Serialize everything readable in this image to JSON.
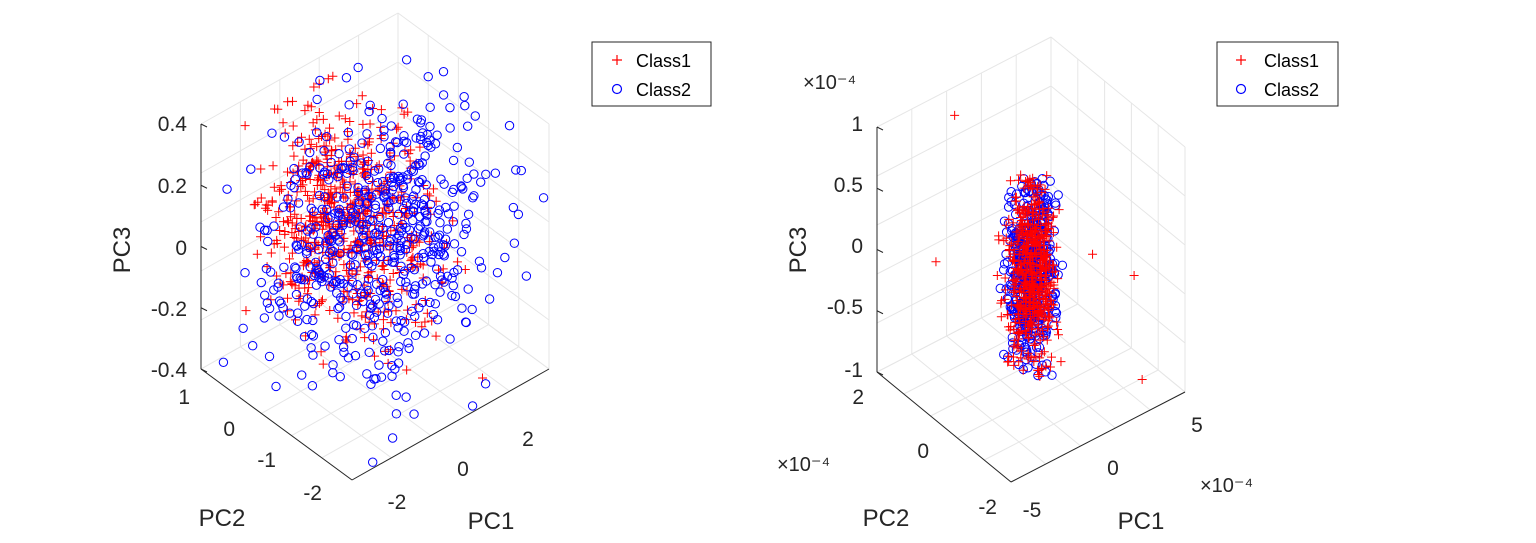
{
  "chart_data": [
    {
      "type": "scatter3d",
      "xlabel": "PC1",
      "ylabel": "PC2",
      "zlabel": "PC3",
      "xlim": [
        -3,
        3
      ],
      "ylim": [
        -2.3,
        1.2
      ],
      "zlim": [
        -0.4,
        0.4
      ],
      "xticks": [
        "-2",
        "0",
        "2"
      ],
      "yticks": [
        "1",
        "0",
        "-1",
        "-2"
      ],
      "zticks": [
        "0.4",
        "0.2",
        "0",
        "-0.2",
        "-0.4"
      ],
      "grid": true,
      "legend_position": "top-right",
      "series": [
        {
          "name": "Class1",
          "marker": "plus",
          "color": "#ff0000"
        },
        {
          "name": "Class2",
          "marker": "circle",
          "color": "#0000ff"
        }
      ],
      "clusters": [
        {
          "series": 0,
          "count": 650,
          "x": [
            -2.6,
            1.2
          ],
          "y": [
            -2.1,
            1.0
          ],
          "z": [
            -0.3,
            0.35
          ],
          "center": [
            -0.4,
            -0.2,
            0.08
          ]
        },
        {
          "series": 1,
          "count": 560,
          "x": [
            -2.6,
            3.0
          ],
          "y": [
            -2.3,
            1.0
          ],
          "z": [
            -0.38,
            0.36
          ],
          "center": [
            0.2,
            -0.5,
            0.0
          ]
        }
      ],
      "outliers": [
        {
          "series": 0,
          "x": 2.3,
          "y": -0.6,
          "z": -0.05
        },
        {
          "series": 0,
          "x": 1.5,
          "y": -1.9,
          "z": -0.38
        },
        {
          "series": 1,
          "x": 2.9,
          "y": -1.0,
          "z": -0.3
        },
        {
          "series": 1,
          "x": 1.2,
          "y": -2.2,
          "z": -0.35
        }
      ]
    },
    {
      "type": "scatter3d",
      "xlabel": "PC1",
      "ylabel": "PC2",
      "zlabel": "PC3",
      "x_exponent": "×10⁻⁴",
      "y_exponent": "×10⁻⁴",
      "z_exponent": "×10⁻⁴",
      "xlim": [
        -5,
        5
      ],
      "ylim": [
        -2,
        2
      ],
      "zlim": [
        -1,
        1
      ],
      "xticks": [
        "5",
        "0",
        "-5"
      ],
      "yticks": [
        "2",
        "0",
        "-2"
      ],
      "zticks": [
        "1",
        "0.5",
        "0",
        "-0.5",
        "-1"
      ],
      "grid": true,
      "legend_position": "top-right",
      "series": [
        {
          "name": "Class1",
          "marker": "plus",
          "color": "#ff0000"
        },
        {
          "name": "Class2",
          "marker": "circle",
          "color": "#0000ff"
        }
      ],
      "clusters": [
        {
          "series": 1,
          "count": 520,
          "x": [
            -1.0,
            1.0
          ],
          "y": [
            -0.5,
            0.5
          ],
          "z": [
            -0.85,
            0.6
          ],
          "center": [
            0,
            0,
            -0.1
          ]
        },
        {
          "series": 0,
          "count": 520,
          "x": [
            -1.0,
            1.0
          ],
          "y": [
            -0.5,
            0.5
          ],
          "z": [
            -0.85,
            0.6
          ],
          "center": [
            0,
            0,
            -0.1
          ]
        }
      ],
      "outliers": [
        {
          "series": 0,
          "x": -4.5,
          "y": 0.5,
          "z": 0.2
        },
        {
          "series": 0,
          "x": -1.5,
          "y": 1.5,
          "z": 0.95
        },
        {
          "series": 0,
          "x": 4.0,
          "y": -1.0,
          "z": -0.2
        },
        {
          "series": 0,
          "x": 4.5,
          "y": 0.5,
          "z": -0.4
        },
        {
          "series": 0,
          "x": 3.5,
          "y": -1.5,
          "z": -0.9
        }
      ]
    }
  ]
}
